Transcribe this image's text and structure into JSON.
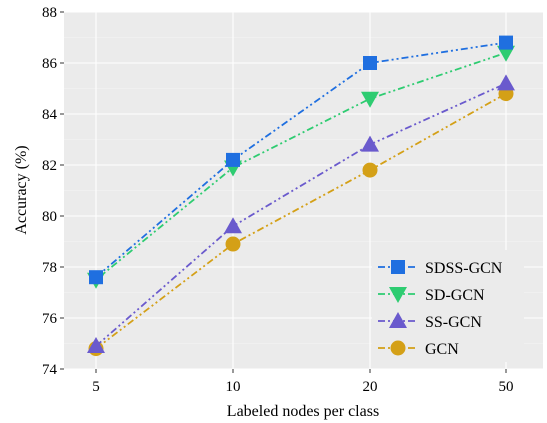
{
  "chart_data": {
    "type": "line",
    "title": "",
    "xlabel": "Labeled nodes per class",
    "ylabel": "Accuracy (%)",
    "categories": [
      "5",
      "10",
      "20",
      "50"
    ],
    "ylim": [
      74,
      88
    ],
    "yticks": [
      "74",
      "76",
      "78",
      "80",
      "82",
      "84",
      "86",
      "88"
    ],
    "grid": true,
    "legend_position": "bottom-right",
    "series": [
      {
        "name": "SDSS-GCN",
        "values": [
          77.6,
          82.2,
          86.0,
          86.8
        ],
        "color": "#1f6fe0",
        "marker": "square"
      },
      {
        "name": "SD-GCN",
        "values": [
          77.5,
          81.9,
          84.6,
          86.4
        ],
        "color": "#2ecc71",
        "marker": "triangle-down"
      },
      {
        "name": "SS-GCN",
        "values": [
          74.9,
          79.6,
          82.8,
          85.2
        ],
        "color": "#6a5acd",
        "marker": "triangle-up"
      },
      {
        "name": "GCN",
        "values": [
          74.8,
          78.9,
          81.8,
          84.8
        ],
        "color": "#d4a017",
        "marker": "circle"
      }
    ]
  }
}
